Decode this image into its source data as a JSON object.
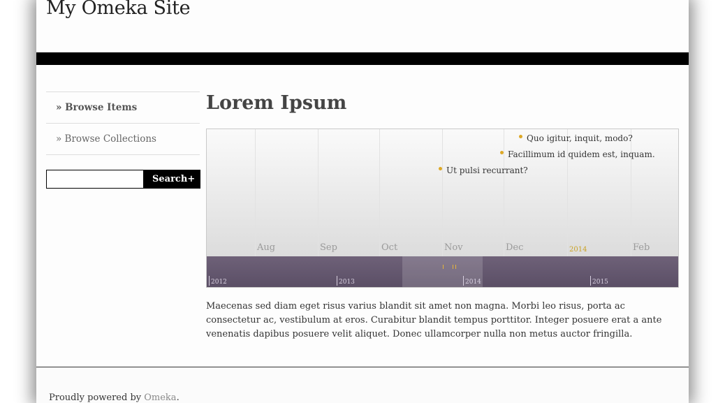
{
  "site": {
    "title": "My Omeka Site"
  },
  "nav": {
    "items": [
      {
        "label": "» Browse Items"
      },
      {
        "label": "» Browse Collections"
      }
    ]
  },
  "search": {
    "value": "",
    "placeholder": "",
    "button_label": "Search",
    "button_icon": "+"
  },
  "main": {
    "title": "Lorem Ipsum",
    "body": "Maecenas sed diam eget risus varius blandit sit amet non magna. Morbi leo risus, porta ac consectetur ac, vestibulum at eros. Curabitur blandit tempus porttitor. Integer posuere erat a ante venenatis dapibus posuere velit aliquet. Donec ullamcorper nulla non metus auctor fringilla."
  },
  "timeline": {
    "months": [
      "Aug",
      "Sep",
      "Oct",
      "Nov",
      "Dec",
      "2014",
      "Feb"
    ],
    "events": [
      {
        "label": "Quo igitur, inquit, modo?"
      },
      {
        "label": "Facillimum id quidem est, inquam."
      },
      {
        "label": "Ut pulsi recurrant?"
      }
    ],
    "years": [
      "2012",
      "2013",
      "2014",
      "2015"
    ],
    "colors": {
      "event_dot": "#dda826",
      "overview_band": "#5b4f66",
      "year_highlight": "#c9a227"
    }
  },
  "footer": {
    "prefix": "Proudly powered by ",
    "link": "Omeka",
    "suffix": "."
  }
}
